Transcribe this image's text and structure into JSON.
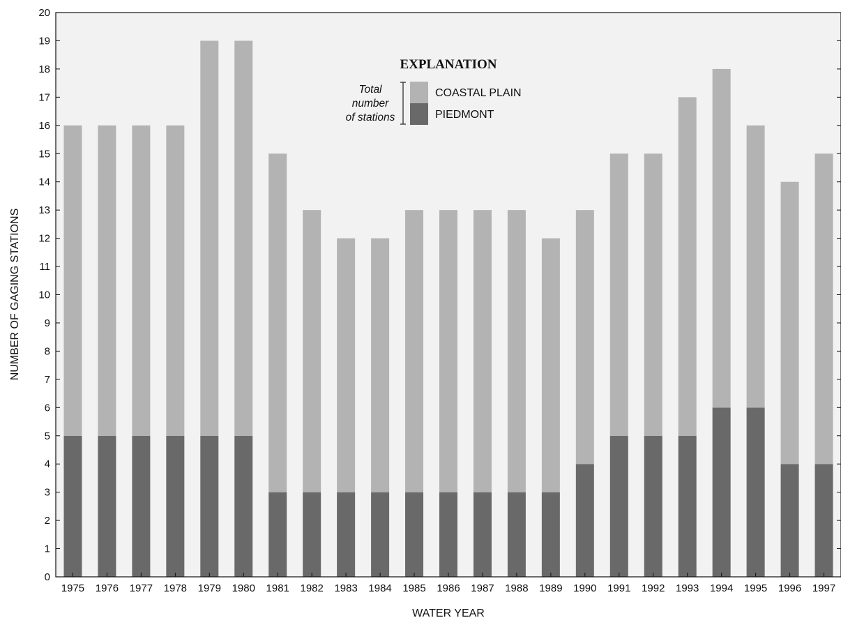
{
  "chart_data": {
    "type": "bar",
    "stacked": true,
    "categories": [
      "1975",
      "1976",
      "1977",
      "1978",
      "1979",
      "1980",
      "1981",
      "1982",
      "1983",
      "1984",
      "1985",
      "1986",
      "1987",
      "1988",
      "1989",
      "1990",
      "1991",
      "1992",
      "1993",
      "1994",
      "1995",
      "1996",
      "1997"
    ],
    "series": [
      {
        "name": "PIEDMONT",
        "color": "#696969",
        "values": [
          5,
          5,
          5,
          5,
          5,
          5,
          3,
          3,
          3,
          3,
          3,
          3,
          3,
          3,
          3,
          4,
          5,
          5,
          5,
          6,
          6,
          4,
          4
        ]
      },
      {
        "name": "COASTAL PLAIN",
        "color": "#b3b3b3",
        "values": [
          11,
          11,
          11,
          11,
          14,
          14,
          12,
          10,
          9,
          9,
          10,
          10,
          10,
          10,
          9,
          9,
          10,
          10,
          12,
          12,
          10,
          10,
          11
        ]
      }
    ],
    "totals": [
      16,
      16,
      16,
      16,
      19,
      19,
      15,
      13,
      12,
      12,
      13,
      13,
      13,
      13,
      12,
      13,
      15,
      15,
      17,
      18,
      16,
      14,
      15
    ],
    "xlabel": "WATER YEAR",
    "ylabel": "NUMBER OF GAGING STATIONS",
    "ylim": [
      0,
      20
    ],
    "yticks": [
      0,
      1,
      2,
      3,
      4,
      5,
      6,
      7,
      8,
      9,
      10,
      11,
      12,
      13,
      14,
      15,
      16,
      17,
      18,
      19,
      20
    ],
    "grid": false,
    "plot_background": "#f2f2f2",
    "legend": {
      "title": "EXPLANATION",
      "note": [
        "Total",
        "number",
        "of stations"
      ],
      "entries": [
        "COASTAL PLAIN",
        "PIEDMONT"
      ],
      "placement": "top-center"
    }
  }
}
